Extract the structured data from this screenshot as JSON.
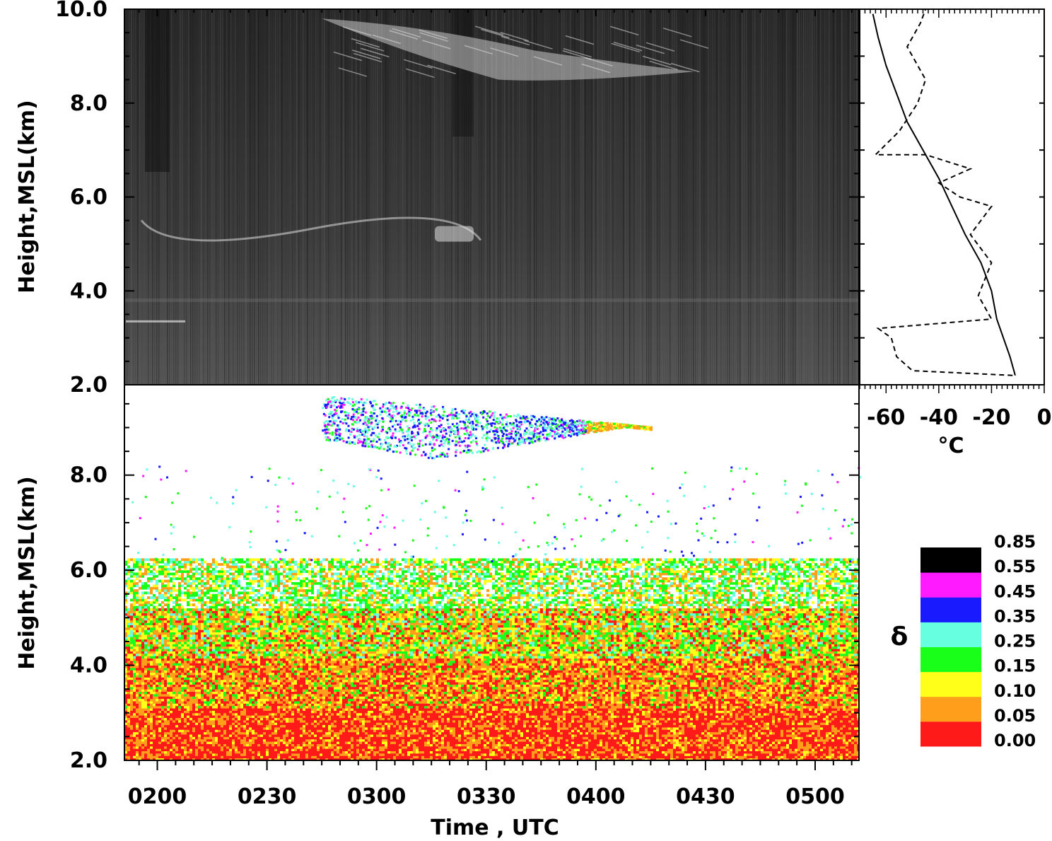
{
  "chart_data": [
    {
      "type": "heatmap",
      "panel": "backscatter",
      "colormap": "grayscale",
      "ylabel": "Height,MSL(km)",
      "ylim": [
        2.0,
        10.0
      ],
      "yticks": [
        "2.0",
        "4.0",
        "6.0",
        "8.0",
        "10.0"
      ],
      "xlim_utc": [
        "01:51",
        "05:12"
      ],
      "features": [
        {
          "feature": "cirrus",
          "time_start": "02:45",
          "time_end": "04:27",
          "height_top_km": 9.8,
          "height_base_km": 8.5
        },
        {
          "feature": "thin cloud layer",
          "time_start": "02:00",
          "time_end": "03:30",
          "height_km": 5.2
        },
        {
          "feature": "mixed layer top",
          "time_start": "01:51",
          "time_end": "05:12",
          "height_km": 3.8
        }
      ]
    },
    {
      "type": "line",
      "panel": "temperature-profile",
      "xlabel": "°C",
      "xticks": [
        "-60",
        "-40",
        "-20",
        "0"
      ],
      "xlim": [
        -70,
        0
      ],
      "ylim": [
        2.0,
        10.0
      ],
      "series": [
        {
          "style": "solid",
          "x": [
            -11,
            -13,
            -18,
            -20,
            -24,
            -30,
            -35,
            -40,
            -46,
            -52,
            -56,
            -60,
            -63,
            -65
          ],
          "y": [
            2.2,
            2.6,
            3.4,
            4.0,
            4.6,
            5.2,
            5.8,
            6.4,
            7.0,
            7.6,
            8.2,
            8.8,
            9.4,
            9.9
          ]
        },
        {
          "style": "dashed",
          "x": [
            -12,
            -50,
            -56,
            -58,
            -63,
            -20,
            -25,
            -20,
            -28,
            -20,
            -32,
            -40,
            -28,
            -45,
            -64,
            -55,
            -48,
            -45,
            -52,
            -47,
            -45
          ],
          "y": [
            2.2,
            2.3,
            2.6,
            3.0,
            3.2,
            3.4,
            3.9,
            4.6,
            5.2,
            5.8,
            6.0,
            6.3,
            6.6,
            6.9,
            6.9,
            7.4,
            8.0,
            8.5,
            9.2,
            9.7,
            10.0
          ]
        }
      ]
    },
    {
      "type": "heatmap",
      "panel": "depolarization",
      "ylabel": "Height,MSL(km)",
      "xlabel": "Time , UTC",
      "ylim": [
        2.0,
        9.9
      ],
      "yticks": [
        "2.0",
        "4.0",
        "6.0",
        "8.0"
      ],
      "xticks": [
        "0200",
        "0230",
        "0300",
        "0330",
        "0400",
        "0430",
        "0500"
      ],
      "colorbar": {
        "label": "δ",
        "levels": [
          "0.00",
          "0.05",
          "0.10",
          "0.15",
          "0.25",
          "0.35",
          "0.45",
          "0.55",
          "0.85"
        ],
        "colors": [
          "#ff1a1a",
          "#ff9e1a",
          "#ffff1a",
          "#1aff1a",
          "#66ffe0",
          "#1a1aff",
          "#ff1aff",
          "#000000"
        ]
      },
      "regions": [
        {
          "region": "cirrus",
          "time_start": "02:45",
          "time_end": "04:15",
          "height_top_km": 9.7,
          "height_base_km": 8.5,
          "delta_range": [
            0.25,
            0.45
          ]
        },
        {
          "region": "aerosol layer",
          "time_start": "01:51",
          "time_end": "05:12",
          "height_top_km": 6.2,
          "height_base_km": 2.0,
          "delta_range": [
            0.0,
            0.15
          ]
        }
      ]
    }
  ]
}
